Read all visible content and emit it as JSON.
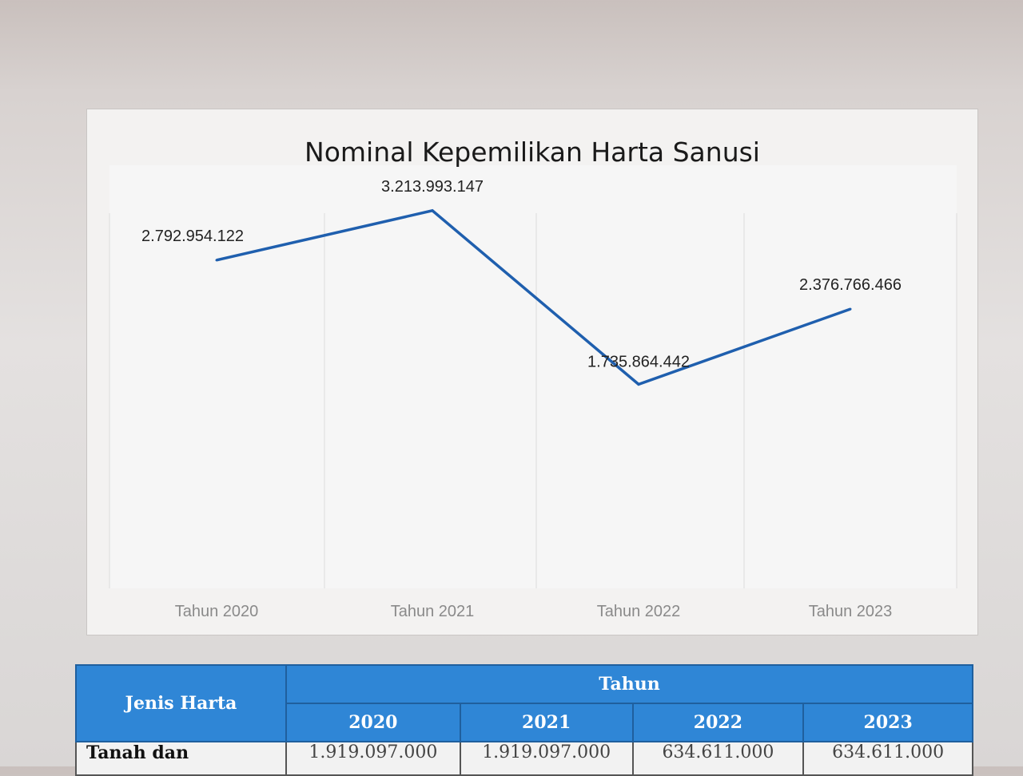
{
  "chart_data": {
    "type": "line",
    "title": "Nominal Kepemilikan Harta Sanusi",
    "categories": [
      "Tahun 2020",
      "Tahun 2021",
      "Tahun 2022",
      "Tahun 2023"
    ],
    "series": [
      {
        "values": [
          2792954122,
          3213993147,
          1735864442,
          2376766466
        ],
        "data_labels": [
          "2.792.954.122",
          "3.213.993.147",
          "1.735.864.442",
          "2.376.766.466"
        ]
      }
    ],
    "ylim": [
      0,
      3600000000
    ],
    "grid": "vertical",
    "line_color": "#1f5fae"
  },
  "table": {
    "header_label": "Jenis Harta",
    "header_group": "Tahun",
    "years": [
      "2020",
      "2021",
      "2022",
      "2023"
    ],
    "rows": [
      {
        "label": "Tanah dan",
        "values": [
          "1.919.097.000",
          "1.919.097.000",
          "634.611.000",
          "634.611.000"
        ]
      }
    ]
  }
}
